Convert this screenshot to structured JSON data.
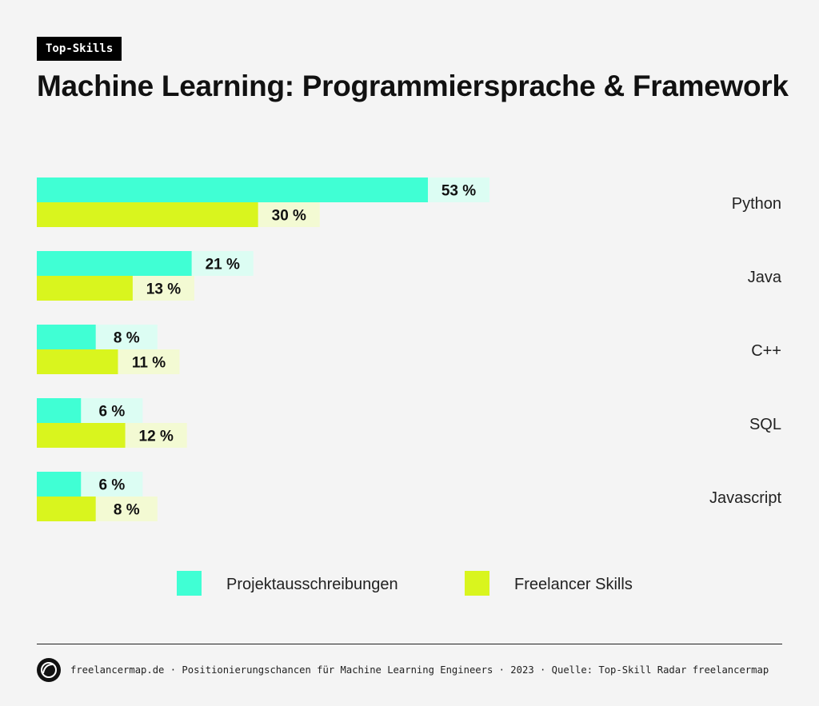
{
  "tag": "Top-Skills",
  "title": "Machine Learning: Programmiersprache & Framework",
  "footer": "freelancermap.de · Positionierungschancen für Machine Learning Engineers · 2023 · Quelle: Top-Skill Radar freelancermap",
  "chart_data": {
    "type": "bar",
    "orientation": "horizontal",
    "categories": [
      "Python",
      "Java",
      "C++",
      "SQL",
      "Javascript"
    ],
    "series": [
      {
        "name": "Projektausschreibungen",
        "values": [
          53,
          21,
          8,
          6,
          6
        ],
        "color": "#40ffd4",
        "label_bg": "#dcfdf3"
      },
      {
        "name": "Freelancer Skills",
        "values": [
          30,
          13,
          11,
          12,
          8
        ],
        "color": "#d9f51e",
        "label_bg": "#f3fad3"
      }
    ],
    "unit": "%",
    "xlim": [
      0,
      100
    ],
    "grid": false,
    "legend": "bottom-center"
  }
}
